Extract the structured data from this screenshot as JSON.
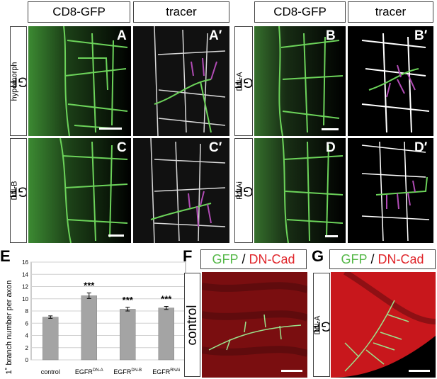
{
  "headers": {
    "cd8_left": "CD8-GFP",
    "tracer_left": "tracer",
    "cd8_right": "CD8-GFP",
    "tracer_right": "tracer"
  },
  "row_labels": {
    "a": {
      "base": "EGFR",
      "sup": "hypomorph"
    },
    "b": {
      "base": "EGFR",
      "sup": "DN-A"
    },
    "c": {
      "base": "EGFR",
      "sup": "DN-B"
    },
    "d": {
      "base": "EGFR",
      "sup": "RNAi"
    }
  },
  "panel_labels": {
    "A": "A",
    "A2": "A′",
    "B": "B",
    "B2": "B′",
    "C": "C",
    "C2": "C′",
    "D": "D",
    "D2": "D′",
    "E": "E",
    "F": "F",
    "G": "G"
  },
  "legend": {
    "gfp": "GFP",
    "slash": " / ",
    "dncad": "DN-Cad"
  },
  "panel_f_label": "control",
  "panel_g_label": {
    "base": "EGFR",
    "sup": "DN-A"
  },
  "colors": {
    "gfp_green": "#6cd35a",
    "tracer_magenta": "#b14bb5",
    "dncad_red": "#c8171c",
    "bar_gray": "#a4a4a4"
  },
  "chart_data": {
    "type": "bar",
    "categories": [
      "control",
      "EGFR DN-A",
      "EGFR DN-B",
      "EGFR RNAi"
    ],
    "category_labels": [
      {
        "base": "control",
        "sup": ""
      },
      {
        "base": "EGFR",
        "sup": "DN-A"
      },
      {
        "base": "EGFR",
        "sup": "DN-B"
      },
      {
        "base": "EGFR",
        "sup": "RNAi"
      }
    ],
    "values": [
      7.0,
      10.5,
      8.3,
      8.5
    ],
    "errors": [
      0.2,
      0.45,
      0.3,
      0.25
    ],
    "significance": [
      "",
      "***",
      "***",
      "***"
    ],
    "ylabel": "1˚ branch number per axon",
    "ylim": [
      0,
      16
    ],
    "yticks": [
      0,
      2,
      4,
      6,
      8,
      10,
      12,
      14,
      16
    ],
    "grid": true
  }
}
